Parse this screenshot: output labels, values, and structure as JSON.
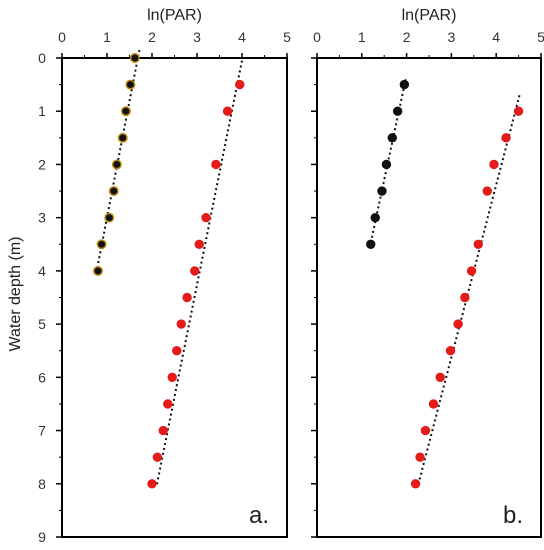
{
  "colors": {
    "surface": "#e31b1b",
    "deep": "#111111",
    "deep_outline_a": "#b8860b",
    "trend": "#111111",
    "axis": "#000000"
  },
  "shared": {
    "ylabel": "Water depth (m)",
    "yticks": [
      "0",
      "1",
      "2",
      "3",
      "4",
      "5",
      "6",
      "7",
      "8",
      "9"
    ]
  },
  "chart_data": [
    {
      "type": "scatter",
      "panel_label": "a.",
      "xlabel": "ln(PAR)",
      "xlim": [
        0,
        5
      ],
      "ylim": [
        0,
        9
      ],
      "y_inverted": true,
      "x_axis_position": "top",
      "xticks": [
        "0",
        "1",
        "2",
        "3",
        "4",
        "5"
      ],
      "series": [
        {
          "color_key": "deep",
          "outline_key": "deep_outline_a",
          "points": [
            [
              1.62,
              0
            ],
            [
              1.52,
              0.5
            ],
            [
              1.42,
              1
            ],
            [
              1.35,
              1.5
            ],
            [
              1.22,
              2
            ],
            [
              1.15,
              2.5
            ],
            [
              1.05,
              3
            ],
            [
              0.88,
              3.5
            ],
            [
              0.8,
              4
            ]
          ],
          "trendline": [
            [
              1.72,
              -0.15
            ],
            [
              0.76,
              4.05
            ]
          ]
        },
        {
          "color_key": "surface",
          "points": [
            [
              3.95,
              0.5
            ],
            [
              3.68,
              1
            ],
            [
              3.42,
              2
            ],
            [
              3.2,
              3
            ],
            [
              3.05,
              3.5
            ],
            [
              2.95,
              4
            ],
            [
              2.78,
              4.5
            ],
            [
              2.65,
              5
            ],
            [
              2.55,
              5.5
            ],
            [
              2.45,
              6
            ],
            [
              2.35,
              6.5
            ],
            [
              2.25,
              7
            ],
            [
              2.12,
              7.5
            ],
            [
              2.0,
              8
            ]
          ],
          "trendline": [
            [
              4.0,
              0.05
            ],
            [
              2.1,
              8.05
            ]
          ]
        }
      ]
    },
    {
      "type": "scatter",
      "panel_label": "b.",
      "xlabel": "ln(PAR)",
      "xlim": [
        0,
        5
      ],
      "ylim": [
        0,
        9
      ],
      "y_inverted": true,
      "x_axis_position": "top",
      "xticks": [
        "0",
        "1",
        "2",
        "3",
        "4",
        "5"
      ],
      "series": [
        {
          "color_key": "deep",
          "points": [
            [
              1.95,
              0.5
            ],
            [
              1.8,
              1
            ],
            [
              1.68,
              1.5
            ],
            [
              1.55,
              2
            ],
            [
              1.45,
              2.5
            ],
            [
              1.3,
              3
            ],
            [
              1.2,
              3.5
            ]
          ],
          "trendline": [
            [
              1.98,
              0.4
            ],
            [
              1.18,
              3.55
            ]
          ]
        },
        {
          "color_key": "surface",
          "points": [
            [
              4.5,
              1
            ],
            [
              4.22,
              1.5
            ],
            [
              3.95,
              2
            ],
            [
              3.8,
              2.5
            ],
            [
              3.6,
              3.5
            ],
            [
              3.45,
              4
            ],
            [
              3.3,
              4.5
            ],
            [
              3.15,
              5
            ],
            [
              2.98,
              5.5
            ],
            [
              2.75,
              6
            ],
            [
              2.6,
              6.5
            ],
            [
              2.42,
              7
            ],
            [
              2.3,
              7.5
            ],
            [
              2.2,
              8
            ]
          ],
          "trendline": [
            [
              4.52,
              0.7
            ],
            [
              2.25,
              8.05
            ]
          ]
        }
      ]
    }
  ]
}
